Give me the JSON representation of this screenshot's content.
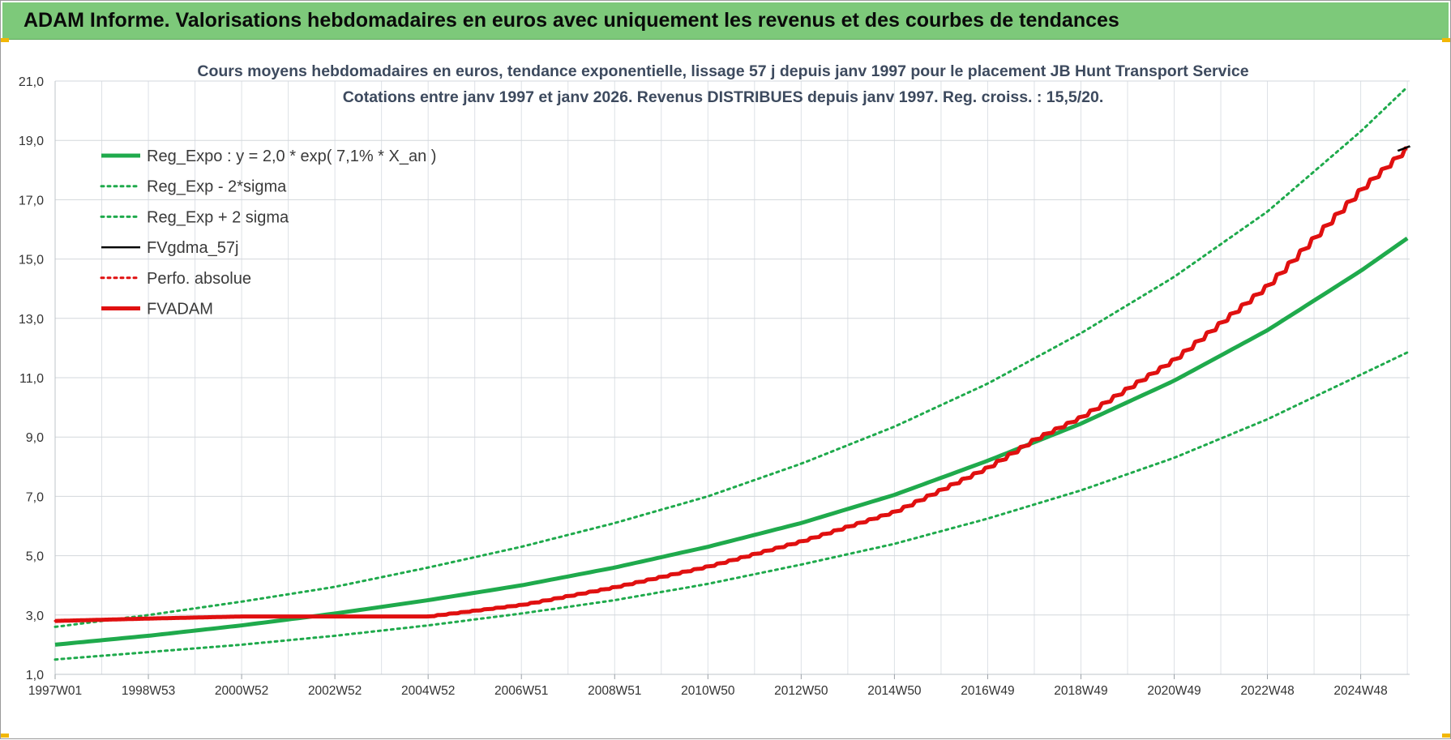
{
  "banner": {
    "title": "ADAM Informe. Valorisations hebdomadaires en euros avec uniquement les revenus et des courbes de tendances"
  },
  "chart_data": {
    "type": "line",
    "title": "Cours moyens hebdomadaires en euros, tendance exponentielle, lissage 57 j depuis janv 1997 pour le placement JB Hunt Transport Service",
    "subtitle": "Cotations entre janv 1997 et janv 2026. Revenus DISTRIBUES depuis janv 1997. Reg. croiss. : 15,5/20.",
    "xlabel": "",
    "ylabel": "",
    "x_range": [
      1997.0,
      2026.05
    ],
    "ylim": [
      1.0,
      21.0
    ],
    "y_ticks": [
      "1,0",
      "3,0",
      "5,0",
      "7,0",
      "9,0",
      "11,0",
      "13,0",
      "15,0",
      "17,0",
      "19,0",
      "21,0"
    ],
    "x_ticks": [
      {
        "x": 1997.0,
        "label": "1997W01"
      },
      {
        "x": 1999.0,
        "label": "1998W53"
      },
      {
        "x": 2001.0,
        "label": "2000W52"
      },
      {
        "x": 2003.0,
        "label": "2002W52"
      },
      {
        "x": 2005.0,
        "label": "2004W52"
      },
      {
        "x": 2007.0,
        "label": "2006W51"
      },
      {
        "x": 2009.0,
        "label": "2008W51"
      },
      {
        "x": 2011.0,
        "label": "2010W50"
      },
      {
        "x": 2013.0,
        "label": "2012W50"
      },
      {
        "x": 2015.0,
        "label": "2014W50"
      },
      {
        "x": 2017.0,
        "label": "2016W49"
      },
      {
        "x": 2019.0,
        "label": "2018W49"
      },
      {
        "x": 2021.0,
        "label": "2020W49"
      },
      {
        "x": 2023.0,
        "label": "2022W48"
      },
      {
        "x": 2025.0,
        "label": "2024W48"
      }
    ],
    "grid": true,
    "legend": "top-left",
    "series": [
      {
        "name": "Reg_Expo : y = 2,0 * exp( 7,1% *  X_an )",
        "color": "#1faa4c",
        "style": "solid-thick",
        "x": [
          1997,
          1999,
          2001,
          2003,
          2005,
          2007,
          2009,
          2011,
          2013,
          2015,
          2017,
          2019,
          2021,
          2023,
          2025,
          2026
        ],
        "y": [
          2.0,
          2.3,
          2.65,
          3.05,
          3.5,
          4.0,
          4.6,
          5.3,
          6.1,
          7.05,
          8.2,
          9.45,
          10.9,
          12.6,
          14.6,
          15.7
        ]
      },
      {
        "name": "Reg_Exp - 2*sigma",
        "color": "#1faa4c",
        "style": "dotted",
        "x": [
          1997,
          1999,
          2001,
          2003,
          2005,
          2007,
          2009,
          2011,
          2013,
          2015,
          2017,
          2019,
          2021,
          2023,
          2025,
          2026
        ],
        "y": [
          1.5,
          1.75,
          2.0,
          2.3,
          2.65,
          3.05,
          3.5,
          4.05,
          4.7,
          5.4,
          6.25,
          7.2,
          8.3,
          9.6,
          11.1,
          11.85
        ]
      },
      {
        "name": "Reg_Exp + 2 sigma",
        "color": "#1faa4c",
        "style": "dotted",
        "x": [
          1997,
          1999,
          2001,
          2003,
          2005,
          2007,
          2009,
          2011,
          2013,
          2015,
          2017,
          2019,
          2021,
          2023,
          2025,
          2026
        ],
        "y": [
          2.6,
          3.0,
          3.45,
          3.95,
          4.6,
          5.3,
          6.1,
          7.0,
          8.1,
          9.35,
          10.8,
          12.5,
          14.4,
          16.6,
          19.3,
          20.8
        ]
      },
      {
        "name": "FVgdma_57j",
        "color": "#000000",
        "style": "solid",
        "x": [
          2025.8,
          2026.05
        ],
        "y": [
          18.65,
          18.8
        ]
      },
      {
        "name": "Perfo. absolue",
        "color": "#e01010",
        "style": "dotted",
        "x": [
          1997,
          1999,
          2001,
          2003,
          2004.95,
          2007,
          2009,
          2011,
          2013,
          2015,
          2017,
          2018,
          2019,
          2021,
          2023,
          2025,
          2026
        ],
        "y": [
          2.8,
          2.88,
          2.95,
          2.95,
          2.95,
          3.35,
          3.95,
          4.65,
          5.5,
          6.5,
          8.0,
          8.95,
          9.7,
          11.65,
          14.15,
          17.4,
          18.8
        ]
      },
      {
        "name": "FVADAM",
        "color": "#e01010",
        "style": "solid-thick",
        "x": [
          1997,
          1999,
          2001,
          2003,
          2004.95,
          2007,
          2009,
          2011,
          2013,
          2015,
          2017,
          2018,
          2019,
          2021,
          2023,
          2025,
          2026
        ],
        "y": [
          2.8,
          2.88,
          2.95,
          2.95,
          2.95,
          3.35,
          3.95,
          4.65,
          5.5,
          6.5,
          8.0,
          8.95,
          9.7,
          11.65,
          14.15,
          17.4,
          18.8
        ]
      }
    ]
  }
}
